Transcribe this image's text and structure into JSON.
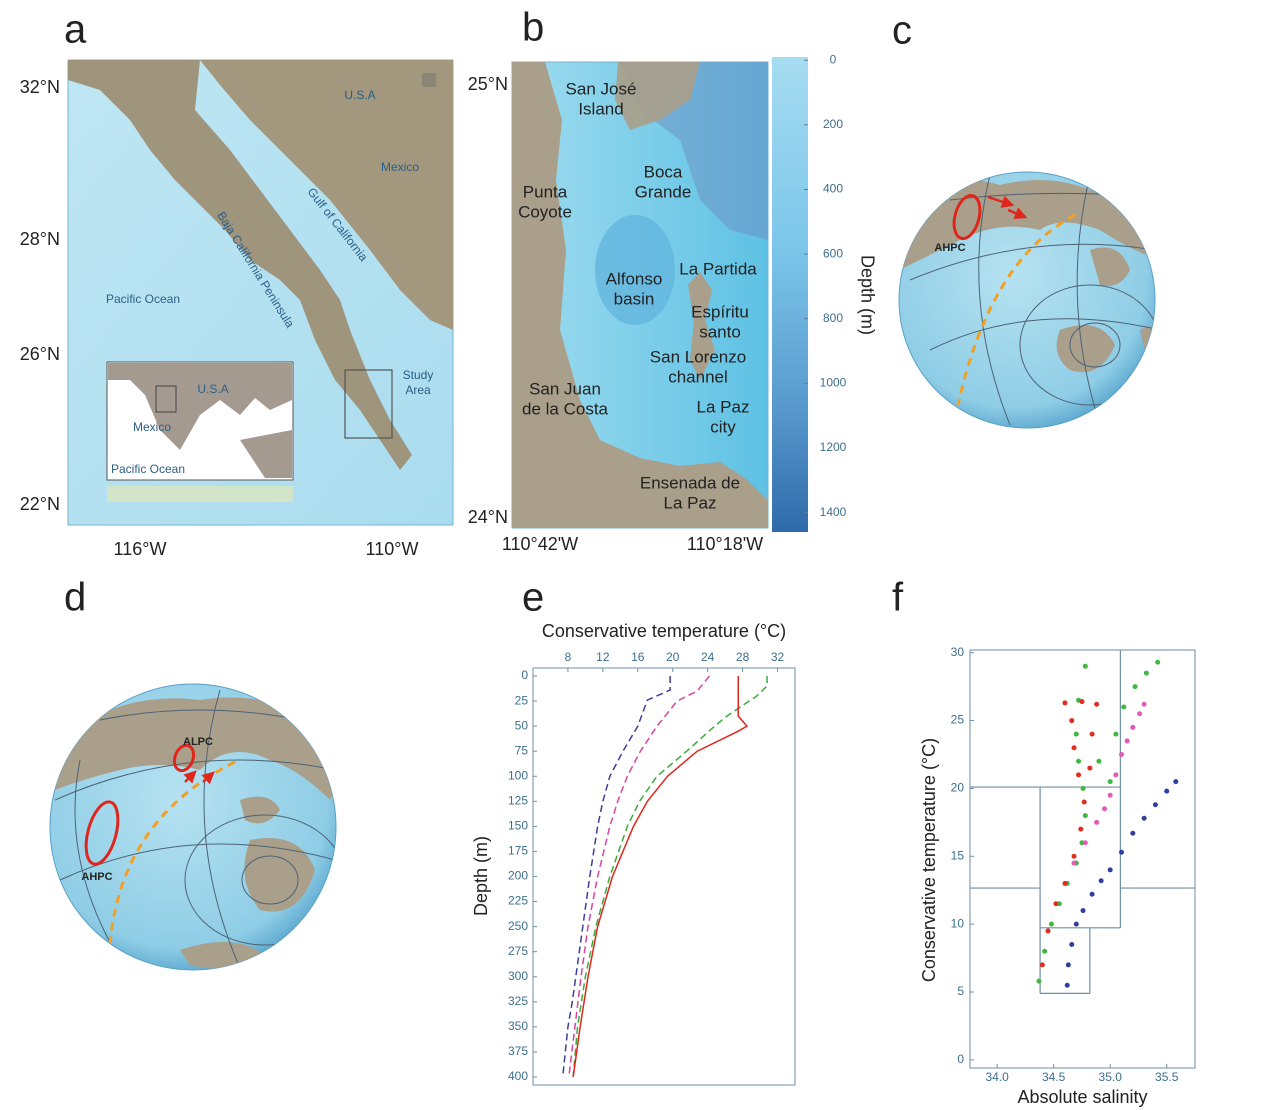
{
  "panels": {
    "a": {
      "label": "a",
      "lat_labels": [
        "32°N",
        "28°N",
        "26°N",
        "22°N"
      ],
      "lon_labels": [
        "116°W",
        "110°W"
      ],
      "places": [
        "U.S.A",
        "Mexico",
        "Gulf of California",
        "Baja California Peninsula",
        "Pacific Ocean"
      ],
      "inset_places": [
        "U.S.A",
        "Mexico",
        "Pacific Ocean"
      ],
      "study_area": [
        "Study",
        "Area"
      ]
    },
    "b": {
      "label": "b",
      "lat_labels": [
        "25°N",
        "24°N"
      ],
      "lon_labels": [
        "110°42'W",
        "110°18'W"
      ],
      "places": [
        [
          "San José",
          "Island"
        ],
        [
          "Boca",
          "Grande"
        ],
        [
          "Punta",
          "Coyote"
        ],
        [
          "Alfonso",
          "basin"
        ],
        [
          "La Partida"
        ],
        [
          "Espíritu",
          "santo"
        ],
        [
          "San Lorenzo",
          "channel"
        ],
        [
          "San Juan",
          "de la Costa"
        ],
        [
          "La Paz",
          "city"
        ],
        [
          "Ensenada de",
          "La Paz"
        ]
      ],
      "colorbar": {
        "label": "Depth (m)",
        "lim": [
          -10,
          1460
        ],
        "ticks": [
          0,
          200,
          400,
          600,
          800,
          1000,
          1200,
          1400
        ]
      }
    },
    "c": {
      "label": "c",
      "currents": [
        "AHPC"
      ]
    },
    "d": {
      "label": "d",
      "currents": [
        "ALPC",
        "AHPC"
      ]
    },
    "e": {
      "label": "e"
    },
    "f": {
      "label": "f"
    }
  },
  "chart_data": [
    {
      "type": "line",
      "x_label": "Conservative temperature (°C)",
      "y_label": "Depth (m)",
      "xlim": [
        4,
        34
      ],
      "xticks": [
        8,
        12,
        16,
        20,
        24,
        28,
        32
      ],
      "ylim": [
        -8,
        408
      ],
      "y_inverted": true,
      "yticks": [
        0,
        25,
        50,
        75,
        100,
        125,
        150,
        175,
        200,
        225,
        250,
        275,
        300,
        325,
        350,
        375,
        400
      ],
      "series": [
        {
          "color": "#3b3f9a",
          "dashed": true,
          "depth": [
            0,
            14,
            24,
            50,
            75,
            100,
            125,
            150,
            200,
            250,
            300,
            325,
            350,
            400
          ],
          "values": [
            19.7,
            19.7,
            17.1,
            16,
            14.3,
            12.8,
            12,
            11.4,
            10.5,
            9.7,
            8.9,
            8.5,
            8,
            7.4
          ]
        },
        {
          "color": "#d6459f",
          "dashed": true,
          "depth": [
            0,
            15,
            25,
            50,
            75,
            100,
            125,
            150,
            200,
            250,
            300,
            350,
            400
          ],
          "values": [
            24.2,
            22.8,
            20.5,
            18.2,
            16.3,
            14.8,
            13.7,
            12.8,
            11.4,
            10.3,
            9.5,
            8.8,
            8.1
          ]
        },
        {
          "color": "#3bab3f",
          "dashed": true,
          "depth": [
            0,
            10,
            20,
            40,
            50,
            75,
            100,
            125,
            150,
            200,
            250,
            300,
            350,
            400
          ],
          "values": [
            30.8,
            30.8,
            29.6,
            26.2,
            24.8,
            21.6,
            18.2,
            16.2,
            14.8,
            12.8,
            11.2,
            10,
            9.1,
            8.6
          ]
        },
        {
          "color": "#e0261c",
          "dashed": false,
          "depth": [
            0,
            40,
            50,
            55,
            75,
            100,
            125,
            150,
            200,
            250,
            300,
            350,
            400
          ],
          "values": [
            27.5,
            27.5,
            28.5,
            27.5,
            22.8,
            19.4,
            17.1,
            15.5,
            13.1,
            11.4,
            10.3,
            9.4,
            8.6
          ]
        }
      ]
    },
    {
      "type": "scatter",
      "x_label": "Absolute salinity",
      "y_label": "Conservative temperature (°C)",
      "xlim": [
        33.76,
        35.75
      ],
      "xticks": [
        {
          "value": 34,
          "label": "34.0"
        },
        {
          "value": 34.5,
          "label": "34.5"
        },
        {
          "value": 35,
          "label": "35.0"
        },
        {
          "value": 35.5,
          "label": "35.5"
        }
      ],
      "ylim": [
        -0.6,
        30.2
      ],
      "yticks": [
        0,
        5,
        10,
        15,
        20,
        25,
        30
      ],
      "boundaries": [
        [
          35.09,
          9.73,
          35.09,
          30.2
        ],
        [
          33.76,
          20.1,
          35.09,
          20.1
        ],
        [
          34.38,
          4.9,
          34.38,
          20.1
        ],
        [
          33.76,
          12.66,
          34.38,
          12.66
        ],
        [
          35.09,
          12.66,
          35.75,
          12.66
        ],
        [
          34.38,
          9.73,
          35.09,
          9.73
        ],
        [
          34.82,
          4.9,
          34.82,
          9.73
        ],
        [
          34.38,
          4.9,
          34.82,
          4.9
        ]
      ],
      "series": [
        {
          "color": "#3cb843",
          "x": [
            34.37,
            34.42,
            34.48,
            34.55,
            34.62,
            34.7,
            34.75,
            34.78,
            34.76,
            34.72,
            34.7,
            34.72,
            34.78,
            34.9,
            35.0,
            35.05,
            35.12,
            35.22,
            35.32,
            35.42
          ],
          "values": [
            5.8,
            8,
            10,
            11.5,
            13,
            14.5,
            16,
            18,
            20,
            22,
            24,
            26.5,
            29,
            22,
            20.5,
            24,
            26,
            27.5,
            28.5,
            29.3
          ]
        },
        {
          "color": "#e25ab3",
          "x": [
            34.68,
            34.78,
            34.88,
            34.95,
            35.0,
            35.05,
            35.1,
            35.15,
            35.2,
            35.26,
            35.3
          ],
          "values": [
            14.5,
            16,
            17.5,
            18.5,
            19.5,
            21,
            22.5,
            23.5,
            24.5,
            25.5,
            26.2
          ]
        },
        {
          "color": "#e32b1f",
          "x": [
            34.4,
            34.45,
            34.52,
            34.6,
            34.68,
            34.74,
            34.77,
            34.72,
            34.68,
            34.66,
            34.6,
            34.75,
            34.88,
            34.84,
            34.82
          ],
          "values": [
            7,
            9.5,
            11.5,
            13,
            15,
            17,
            19,
            21,
            23,
            25,
            26.3,
            26.4,
            26.2,
            24,
            21.5
          ]
        },
        {
          "color": "#2f3e9e",
          "x": [
            34.62,
            34.63,
            34.66,
            34.7,
            34.76,
            34.84,
            34.92,
            35.0,
            35.1,
            35.2,
            35.3,
            35.4,
            35.5,
            35.58
          ],
          "values": [
            5.5,
            7,
            8.5,
            10,
            11,
            12.2,
            13.2,
            14,
            15.3,
            16.7,
            17.8,
            18.8,
            19.8,
            20.5
          ]
        }
      ]
    }
  ]
}
